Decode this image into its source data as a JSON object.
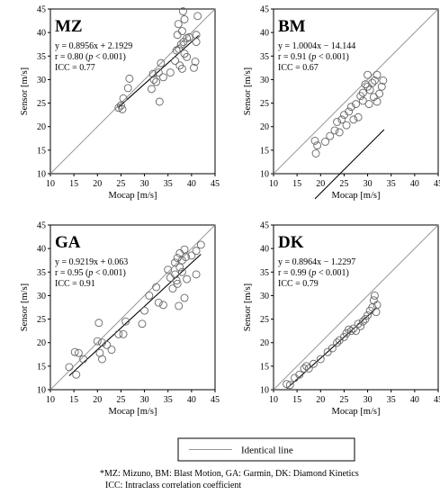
{
  "legend": {
    "label": "Identical line",
    "color": "#999999"
  },
  "footnote": {
    "line1": "*MZ: Mizuno, BM: Blast Motion, GA: Garmin, DK: Diamond Kinetics",
    "line2": "ICC: Intraclass correlation coefficient"
  },
  "chart_data": [
    {
      "type": "scatter",
      "title": "MZ",
      "xlabel": "Mocap [m/s]",
      "ylabel": "Sensor [m/s]",
      "xlim": [
        10,
        45
      ],
      "ylim": [
        10,
        45
      ],
      "xticks": [
        10,
        15,
        20,
        25,
        30,
        35,
        40,
        45
      ],
      "yticks": [
        10,
        15,
        20,
        25,
        30,
        35,
        40,
        45
      ],
      "stats": {
        "equation": "y = 0.8956x + 2.1929",
        "r_prefix": "r = 0.80 (",
        "p_text": "p",
        "r_suffix": " < 0.001)",
        "icc": "ICC = 0.77"
      },
      "regression": {
        "slope": 0.8956,
        "intercept": 2.1929,
        "x_range": [
          24.5,
          41.5
        ]
      },
      "identity_line": true,
      "points": [
        {
          "x": 24.5,
          "y": 24.0
        },
        {
          "x": 25.0,
          "y": 24.5
        },
        {
          "x": 25.3,
          "y": 23.7
        },
        {
          "x": 25.5,
          "y": 26.0
        },
        {
          "x": 26.5,
          "y": 28.2
        },
        {
          "x": 26.8,
          "y": 30.2
        },
        {
          "x": 31.5,
          "y": 28.0
        },
        {
          "x": 31.8,
          "y": 31.2
        },
        {
          "x": 32.0,
          "y": 30.0
        },
        {
          "x": 32.5,
          "y": 29.5
        },
        {
          "x": 33.0,
          "y": 31.5
        },
        {
          "x": 33.2,
          "y": 25.3
        },
        {
          "x": 33.5,
          "y": 33.5
        },
        {
          "x": 34.0,
          "y": 30.5
        },
        {
          "x": 35.5,
          "y": 31.5
        },
        {
          "x": 36.5,
          "y": 34.0
        },
        {
          "x": 36.8,
          "y": 36.2
        },
        {
          "x": 37.0,
          "y": 39.5
        },
        {
          "x": 37.2,
          "y": 41.8
        },
        {
          "x": 37.5,
          "y": 33.0
        },
        {
          "x": 37.8,
          "y": 37.5
        },
        {
          "x": 38.0,
          "y": 32.3
        },
        {
          "x": 38.0,
          "y": 40.3
        },
        {
          "x": 38.2,
          "y": 44.5
        },
        {
          "x": 38.5,
          "y": 42.8
        },
        {
          "x": 38.5,
          "y": 35.5
        },
        {
          "x": 39.0,
          "y": 38.8
        },
        {
          "x": 39.0,
          "y": 34.8
        },
        {
          "x": 39.5,
          "y": 39.0
        },
        {
          "x": 40.5,
          "y": 32.5
        },
        {
          "x": 40.8,
          "y": 33.8
        },
        {
          "x": 41.0,
          "y": 38.0
        },
        {
          "x": 41.0,
          "y": 39.5
        },
        {
          "x": 41.3,
          "y": 43.5
        },
        {
          "x": 38.3,
          "y": 38.0
        },
        {
          "x": 37.3,
          "y": 36.5
        }
      ]
    },
    {
      "type": "scatter",
      "title": "BM",
      "xlabel": "Mocap [m/s]",
      "ylabel": "Sensor [m/s]",
      "xlim": [
        10,
        45
      ],
      "ylim": [
        10,
        45
      ],
      "xticks": [
        10,
        15,
        20,
        25,
        30,
        35,
        40,
        45
      ],
      "yticks": [
        10,
        15,
        20,
        25,
        30,
        35,
        40,
        45
      ],
      "stats": {
        "equation": "y = 1.0004x − 14.144",
        "r_prefix": "r = 0.91 (",
        "p_text": "p",
        "r_suffix": " < 0.001)",
        "icc": "ICC = 0.67"
      },
      "regression": {
        "slope": 1.0004,
        "intercept": -14.144,
        "x_range": [
          18.8,
          33.5
        ]
      },
      "identity_line": true,
      "points": [
        {
          "x": 18.8,
          "y": 17.0
        },
        {
          "x": 19.0,
          "y": 14.3
        },
        {
          "x": 19.3,
          "y": 16.0
        },
        {
          "x": 21.0,
          "y": 16.8
        },
        {
          "x": 22.0,
          "y": 18.0
        },
        {
          "x": 23.0,
          "y": 19.2
        },
        {
          "x": 23.5,
          "y": 21.0
        },
        {
          "x": 24.0,
          "y": 18.8
        },
        {
          "x": 24.5,
          "y": 21.5
        },
        {
          "x": 25.0,
          "y": 22.5
        },
        {
          "x": 25.5,
          "y": 20.3
        },
        {
          "x": 26.0,
          "y": 23.2
        },
        {
          "x": 26.5,
          "y": 24.2
        },
        {
          "x": 27.0,
          "y": 21.5
        },
        {
          "x": 27.5,
          "y": 24.8
        },
        {
          "x": 28.0,
          "y": 22.0
        },
        {
          "x": 28.5,
          "y": 26.5
        },
        {
          "x": 29.0,
          "y": 27.2
        },
        {
          "x": 29.0,
          "y": 25.5
        },
        {
          "x": 29.5,
          "y": 29.0
        },
        {
          "x": 30.0,
          "y": 31.0
        },
        {
          "x": 30.0,
          "y": 28.5
        },
        {
          "x": 30.3,
          "y": 24.8
        },
        {
          "x": 30.5,
          "y": 27.8
        },
        {
          "x": 31.0,
          "y": 29.3
        },
        {
          "x": 31.3,
          "y": 26.3
        },
        {
          "x": 31.5,
          "y": 29.8
        },
        {
          "x": 32.0,
          "y": 31.0
        },
        {
          "x": 32.0,
          "y": 25.3
        },
        {
          "x": 32.5,
          "y": 27.0
        },
        {
          "x": 33.0,
          "y": 28.5
        },
        {
          "x": 33.3,
          "y": 29.8
        }
      ]
    },
    {
      "type": "scatter",
      "title": "GA",
      "xlabel": "Mocap [m/s]",
      "ylabel": "Sensor [m/s]",
      "xlim": [
        10,
        45
      ],
      "ylim": [
        10,
        45
      ],
      "xticks": [
        10,
        15,
        20,
        25,
        30,
        35,
        40,
        45
      ],
      "yticks": [
        10,
        15,
        20,
        25,
        30,
        35,
        40,
        45
      ],
      "stats": {
        "equation": "y = 0.9219x + 0.063",
        "r_prefix": "r = 0.95 (",
        "p_text": "p",
        "r_suffix": " < 0.001)",
        "icc": "ICC = 0.91"
      },
      "regression": {
        "slope": 0.9219,
        "intercept": 0.063,
        "x_range": [
          14.0,
          42.0
        ]
      },
      "identity_line": true,
      "points": [
        {
          "x": 14.0,
          "y": 14.8
        },
        {
          "x": 15.2,
          "y": 18.0
        },
        {
          "x": 15.5,
          "y": 13.2
        },
        {
          "x": 16.0,
          "y": 17.8
        },
        {
          "x": 17.0,
          "y": 16.5
        },
        {
          "x": 20.0,
          "y": 20.3
        },
        {
          "x": 20.3,
          "y": 24.2
        },
        {
          "x": 20.5,
          "y": 17.8
        },
        {
          "x": 21.0,
          "y": 16.5
        },
        {
          "x": 21.0,
          "y": 20.0
        },
        {
          "x": 22.0,
          "y": 19.5
        },
        {
          "x": 23.0,
          "y": 18.5
        },
        {
          "x": 24.5,
          "y": 21.8
        },
        {
          "x": 25.5,
          "y": 21.8
        },
        {
          "x": 26.0,
          "y": 24.5
        },
        {
          "x": 29.5,
          "y": 24.0
        },
        {
          "x": 30.0,
          "y": 26.8
        },
        {
          "x": 31.0,
          "y": 30.0
        },
        {
          "x": 32.5,
          "y": 31.8
        },
        {
          "x": 33.0,
          "y": 28.5
        },
        {
          "x": 34.0,
          "y": 28.0
        },
        {
          "x": 35.0,
          "y": 35.5
        },
        {
          "x": 35.5,
          "y": 33.8
        },
        {
          "x": 36.0,
          "y": 31.5
        },
        {
          "x": 36.5,
          "y": 37.0
        },
        {
          "x": 36.5,
          "y": 34.5
        },
        {
          "x": 37.0,
          "y": 38.0
        },
        {
          "x": 37.0,
          "y": 32.5
        },
        {
          "x": 37.3,
          "y": 27.8
        },
        {
          "x": 37.5,
          "y": 36.0
        },
        {
          "x": 37.5,
          "y": 39.0
        },
        {
          "x": 38.0,
          "y": 35.0
        },
        {
          "x": 38.0,
          "y": 37.5
        },
        {
          "x": 38.5,
          "y": 39.8
        },
        {
          "x": 38.5,
          "y": 29.5
        },
        {
          "x": 39.0,
          "y": 33.5
        },
        {
          "x": 40.0,
          "y": 38.5
        },
        {
          "x": 41.0,
          "y": 39.5
        },
        {
          "x": 41.0,
          "y": 34.5
        },
        {
          "x": 42.0,
          "y": 40.8
        },
        {
          "x": 36.8,
          "y": 33.2
        },
        {
          "x": 38.8,
          "y": 38.2
        }
      ]
    },
    {
      "type": "scatter",
      "title": "DK",
      "xlabel": "Mocap [m/s]",
      "ylabel": "Sensor [m/s]",
      "xlim": [
        10,
        45
      ],
      "ylim": [
        10,
        45
      ],
      "xticks": [
        10,
        15,
        20,
        25,
        30,
        35,
        40,
        45
      ],
      "yticks": [
        10,
        15,
        20,
        25,
        30,
        35,
        40,
        45
      ],
      "stats": {
        "equation": "y = 0.8964x − 1.2297",
        "r_prefix": "r = 0.99 (",
        "p_text": "p",
        "r_suffix": " < 0.001)",
        "icc": "ICC = 0.79"
      },
      "regression": {
        "slope": 0.8964,
        "intercept": -1.2297,
        "x_range": [
          12.8,
          32.0
        ]
      },
      "identity_line": true,
      "points": [
        {
          "x": 12.8,
          "y": 11.2
        },
        {
          "x": 13.5,
          "y": 11.0
        },
        {
          "x": 14.5,
          "y": 12.5
        },
        {
          "x": 15.5,
          "y": 13.2
        },
        {
          "x": 16.5,
          "y": 14.5
        },
        {
          "x": 17.0,
          "y": 15.0
        },
        {
          "x": 17.5,
          "y": 14.5
        },
        {
          "x": 18.5,
          "y": 15.5
        },
        {
          "x": 20.0,
          "y": 16.5
        },
        {
          "x": 21.5,
          "y": 18.0
        },
        {
          "x": 22.5,
          "y": 18.8
        },
        {
          "x": 23.5,
          "y": 20.0
        },
        {
          "x": 24.0,
          "y": 20.5
        },
        {
          "x": 25.0,
          "y": 21.2
        },
        {
          "x": 25.5,
          "y": 22.0
        },
        {
          "x": 26.5,
          "y": 22.5
        },
        {
          "x": 27.0,
          "y": 23.0
        },
        {
          "x": 27.5,
          "y": 22.5
        },
        {
          "x": 28.0,
          "y": 24.0
        },
        {
          "x": 28.5,
          "y": 23.5
        },
        {
          "x": 29.0,
          "y": 24.5
        },
        {
          "x": 30.0,
          "y": 25.8
        },
        {
          "x": 30.5,
          "y": 26.8
        },
        {
          "x": 31.0,
          "y": 27.5
        },
        {
          "x": 31.3,
          "y": 29.0
        },
        {
          "x": 31.5,
          "y": 30.0
        },
        {
          "x": 31.8,
          "y": 26.5
        },
        {
          "x": 32.0,
          "y": 28.0
        },
        {
          "x": 26.0,
          "y": 22.8
        },
        {
          "x": 29.5,
          "y": 25.0
        }
      ]
    }
  ]
}
